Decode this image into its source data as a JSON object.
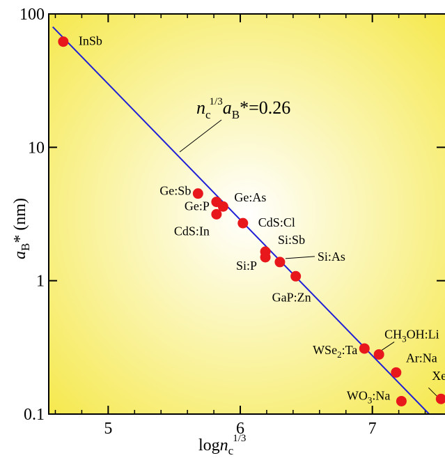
{
  "chart_data": {
    "type": "scatter",
    "xlabel": {
      "main": "log",
      "var": "n",
      "sub": "c",
      "sup": "1/3"
    },
    "ylabel": {
      "var": "a",
      "sub": "B",
      "rest": "* (nm)"
    },
    "xlim": [
      4.55,
      7.55
    ],
    "ylim": [
      0.1,
      100
    ],
    "y_scale": "log",
    "x_ticks": [
      5,
      6,
      7
    ],
    "x_tick_labels": [
      "5",
      "6",
      "7"
    ],
    "y_ticks": [
      0.1,
      1,
      10,
      100
    ],
    "y_tick_labels": [
      "0.1",
      "1",
      "10",
      "100"
    ],
    "background": {
      "center": "#ffffff",
      "edge": "#f5e84a"
    },
    "colors": {
      "points": "#e8171b",
      "fit_line": "#1f1fd6",
      "axes": "#000000"
    },
    "points": [
      {
        "label": "InSb",
        "x": 4.66,
        "y": 62
      },
      {
        "label": "Ge:Sb",
        "x": 5.68,
        "y": 4.5
      },
      {
        "label": "Ge:As",
        "x": 5.87,
        "y": 3.6
      },
      {
        "label": "Ge:P",
        "x": 5.82,
        "y": 3.9
      },
      {
        "label": "CdS:In",
        "x": 5.82,
        "y": 3.15
      },
      {
        "label": "CdS:Cl",
        "x": 6.02,
        "y": 2.7
      },
      {
        "label": "Si:Sb",
        "x": 6.19,
        "y": 1.65
      },
      {
        "label": "Si:P",
        "x": 6.19,
        "y": 1.5
      },
      {
        "label": "Si:As",
        "x": 6.3,
        "y": 1.38
      },
      {
        "label": "GaP:Zn",
        "x": 6.42,
        "y": 1.08
      },
      {
        "label": "WSe2:Ta",
        "x": 6.94,
        "y": 0.31
      },
      {
        "label": "CH3OH:Li",
        "x": 7.05,
        "y": 0.28
      },
      {
        "label": "Ar:Na",
        "x": 7.18,
        "y": 0.205
      },
      {
        "label": "WO3:Na",
        "x": 7.22,
        "y": 0.125
      },
      {
        "label": "Xe:Hg",
        "x": 7.52,
        "y": 0.13
      }
    ],
    "fit_line": {
      "x": [
        4.58,
        7.43
      ],
      "y": [
        80,
        0.1
      ]
    },
    "annotation": {
      "var_n": "n",
      "n_sub": "c",
      "n_sup": "1/3",
      "var_a": "a",
      "a_sub": "B",
      "rest": "*=0.26"
    }
  }
}
